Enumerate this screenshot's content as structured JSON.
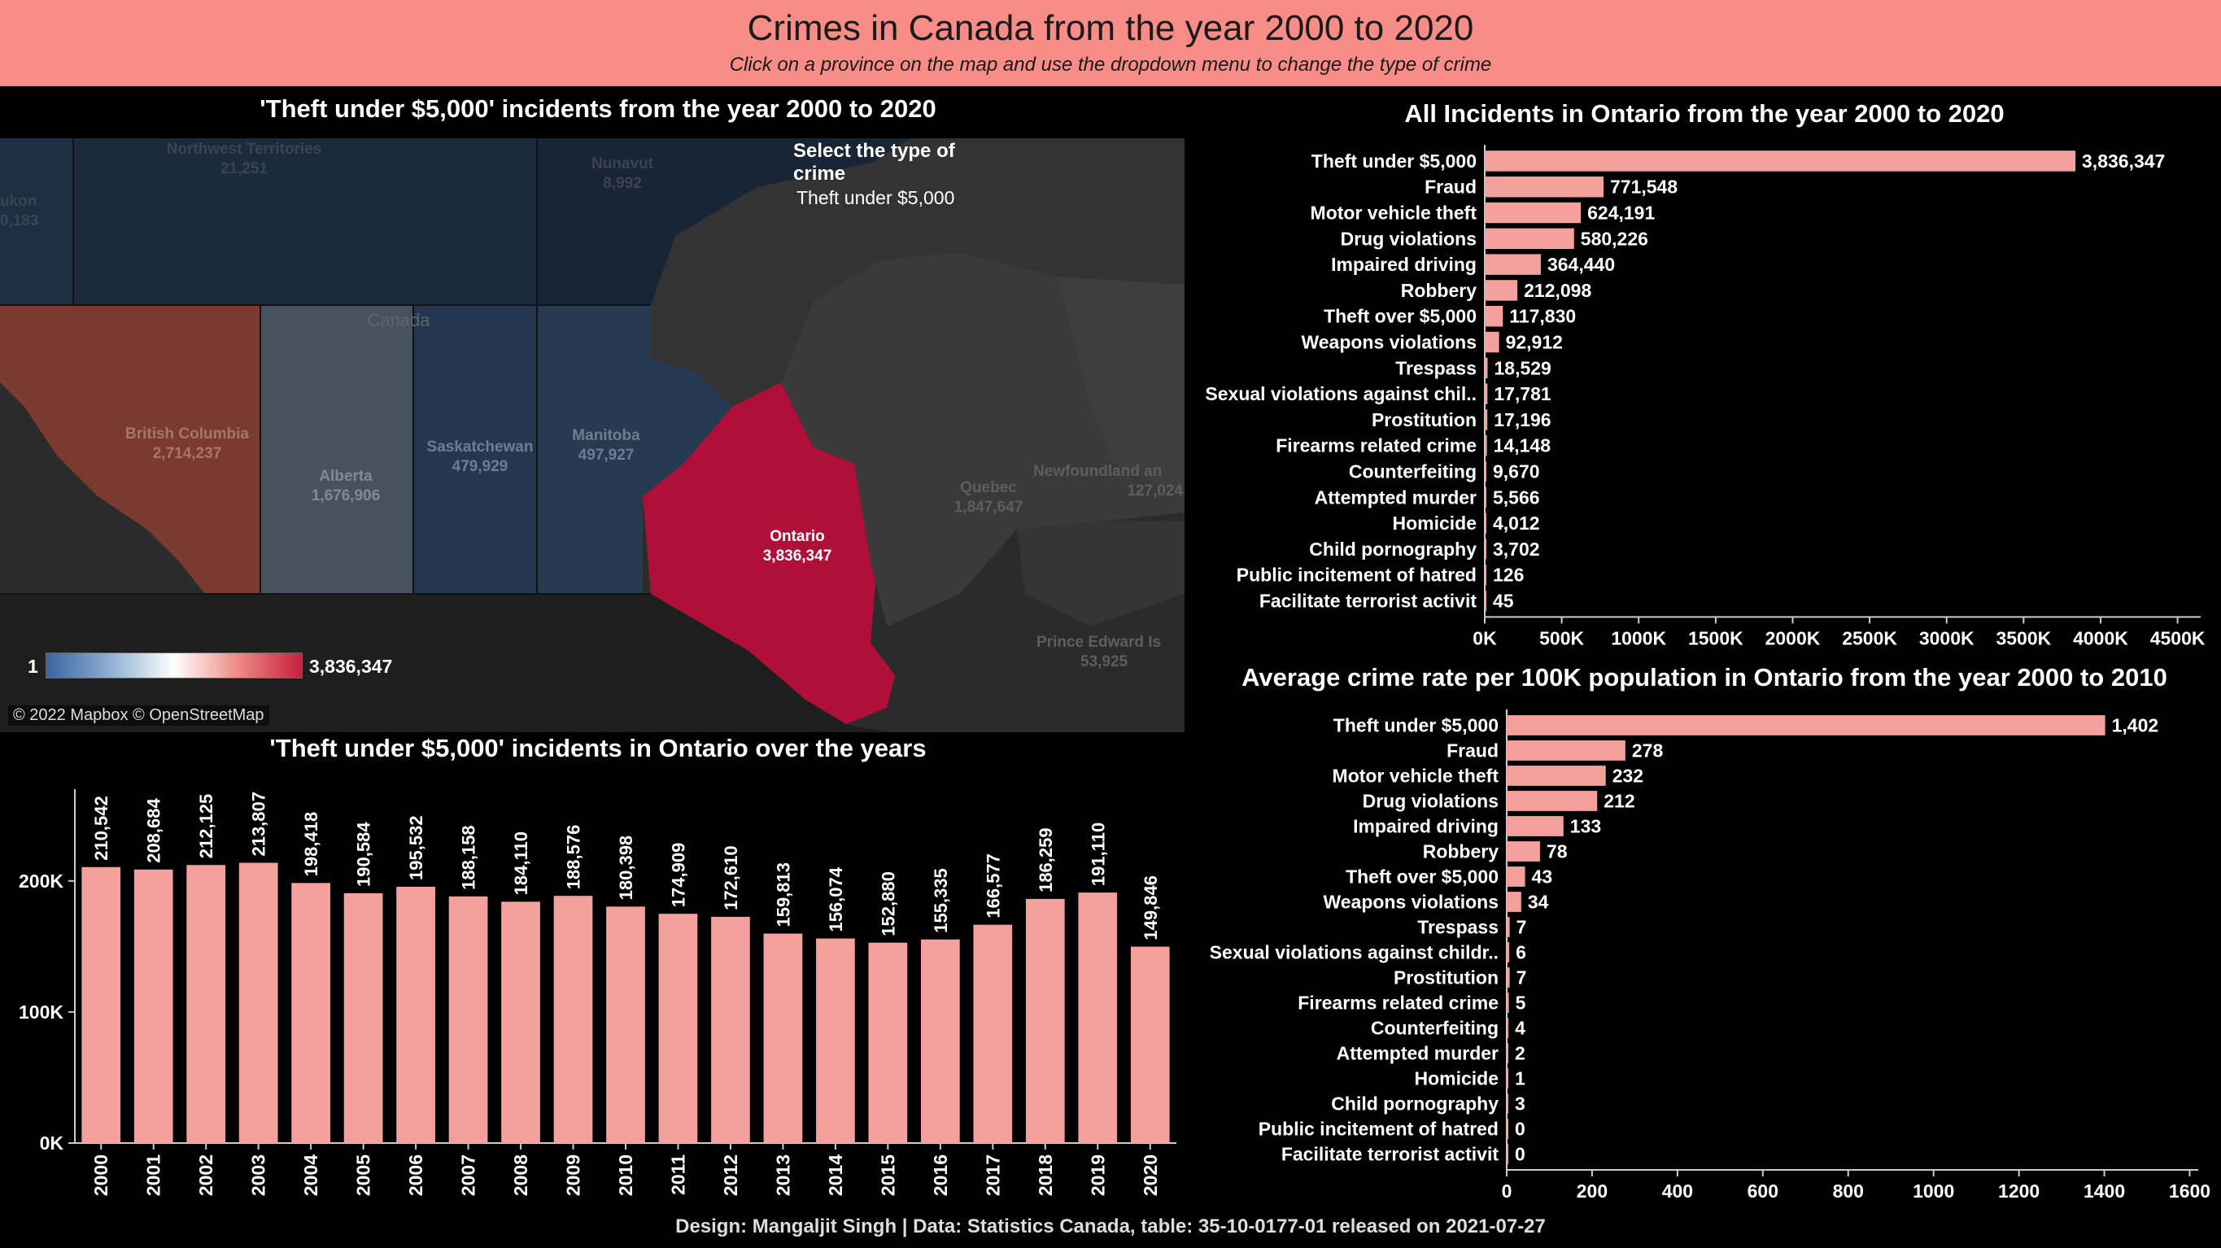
{
  "header": {
    "title": "Crimes in Canada from the year 2000 to 2020",
    "subtitle": "Click on a province on the map and use the dropdown menu to change the type of crime"
  },
  "map": {
    "title": "'Theft under $5,000' incidents from the year 2000 to 2020",
    "country_label": "Canada",
    "select": {
      "title": "Select the type of crime",
      "value": "Theft under $5,000"
    },
    "legend": {
      "min": "1",
      "max": "3,836,347"
    },
    "attribution": "© 2022 Mapbox © OpenStreetMap",
    "regions": [
      {
        "name": "Northwest Territories",
        "value": "21,251"
      },
      {
        "name": "Nunavut",
        "value": "8,992"
      },
      {
        "name": "ukon",
        "value": "0,183"
      },
      {
        "name": "British Columbia",
        "value": "2,714,237"
      },
      {
        "name": "Alberta",
        "value": "1,676,906"
      },
      {
        "name": "Saskatchewan",
        "value": "479,929"
      },
      {
        "name": "Manitoba",
        "value": "497,927"
      },
      {
        "name": "Ontario",
        "value": "3,836,347"
      },
      {
        "name": "Quebec",
        "value": "1,847,647"
      },
      {
        "name": "Newfoundland an",
        "value": "127,024"
      },
      {
        "name": "Prince Edward Is",
        "value": "53,925"
      }
    ],
    "colors": {
      "selected": "#b01038",
      "bc": "#7a3a30",
      "alberta": "#4a5864",
      "prairie": "#263a52",
      "north": "#1a2a3c",
      "land": "#3c3c3c",
      "water": "#2b2b2b"
    }
  },
  "footer": "Design: Mangaljit Singh | Data: Statistics Canada, table: 35-10-0177-01 released on 2021-07-27",
  "chart_data": [
    {
      "id": "all-incidents",
      "type": "bar",
      "orientation": "horizontal",
      "title": "All Incidents in Ontario from the year 2000 to 2020",
      "categories": [
        "Theft under $5,000",
        "Fraud",
        "Motor vehicle theft",
        "Drug violations",
        "Impaired driving",
        "Robbery",
        "Theft over $5,000",
        "Weapons violations",
        "Trespass",
        "Sexual violations against chil..",
        "Prostitution",
        "Firearms related crime",
        "Counterfeiting",
        "Attempted murder",
        "Homicide",
        "Child pornography",
        "Public incitement of hatred",
        "Facilitate terrorist activit"
      ],
      "values": [
        3836347,
        771548,
        624191,
        580226,
        364440,
        212098,
        117830,
        92912,
        18529,
        17781,
        17196,
        14148,
        9670,
        5566,
        4012,
        3702,
        126,
        45
      ],
      "value_labels": [
        "3,836,347",
        "771,548",
        "624,191",
        "580,226",
        "364,440",
        "212,098",
        "117,830",
        "92,912",
        "18,529",
        "17,781",
        "17,196",
        "14,148",
        "9,670",
        "5,566",
        "4,012",
        "3,702",
        "126",
        "45"
      ],
      "xlim": [
        0,
        4650000
      ],
      "ticks": [
        0,
        500000,
        1000000,
        1500000,
        2000000,
        2500000,
        3000000,
        3500000,
        4000000,
        4500000
      ],
      "tick_labels": [
        "0K",
        "500K",
        "1000K",
        "1500K",
        "2000K",
        "2500K",
        "3000K",
        "3500K",
        "4000K",
        "4500K"
      ],
      "color": "#f4a09c"
    },
    {
      "id": "avg-rate",
      "type": "bar",
      "orientation": "horizontal",
      "title": "Average crime rate per 100K population in Ontario from the year 2000 to 2010",
      "categories": [
        "Theft under $5,000",
        "Fraud",
        "Motor vehicle theft",
        "Drug violations",
        "Impaired driving",
        "Robbery",
        "Theft over $5,000",
        "Weapons violations",
        "Trespass",
        "Sexual violations against childr..",
        "Prostitution",
        "Firearms related crime",
        "Counterfeiting",
        "Attempted murder",
        "Homicide",
        "Child pornography",
        "Public incitement of hatred",
        "Facilitate terrorist activit"
      ],
      "values": [
        1402,
        278,
        232,
        212,
        133,
        78,
        43,
        34,
        7,
        6,
        7,
        5,
        4,
        2,
        1,
        3,
        0,
        0
      ],
      "value_labels": [
        "1,402",
        "278",
        "232",
        "212",
        "133",
        "78",
        "43",
        "34",
        "7",
        "6",
        "7",
        "5",
        "4",
        "2",
        "1",
        "3",
        "0",
        "0"
      ],
      "xlim": [
        0,
        1620
      ],
      "ticks": [
        0,
        200,
        400,
        600,
        800,
        1000,
        1200,
        1400,
        1600
      ],
      "tick_labels": [
        "0",
        "200",
        "400",
        "600",
        "800",
        "1000",
        "1200",
        "1400",
        "1600"
      ],
      "color": "#f4a09c"
    },
    {
      "id": "over-years",
      "type": "bar",
      "orientation": "vertical",
      "title": "'Theft under $5,000' incidents in Ontario over the years",
      "categories": [
        "2000",
        "2001",
        "2002",
        "2003",
        "2004",
        "2005",
        "2006",
        "2007",
        "2008",
        "2009",
        "2010",
        "2011",
        "2012",
        "2013",
        "2014",
        "2015",
        "2016",
        "2017",
        "2018",
        "2019",
        "2020"
      ],
      "values": [
        210542,
        208684,
        212125,
        213807,
        198418,
        190584,
        195532,
        188158,
        184110,
        188576,
        180398,
        174909,
        172610,
        159813,
        156074,
        152880,
        155335,
        166577,
        186259,
        191110,
        149846
      ],
      "value_labels": [
        "210,542",
        "208,684",
        "212,125",
        "213,807",
        "198,418",
        "190,584",
        "195,532",
        "188,158",
        "184,110",
        "188,576",
        "180,398",
        "174,909",
        "172,610",
        "159,813",
        "156,074",
        "152,880",
        "155,335",
        "166,577",
        "186,259",
        "191,110",
        "149,846"
      ],
      "ylim": [
        0,
        270000
      ],
      "ticks": [
        0,
        100000,
        200000
      ],
      "tick_labels": [
        "0K",
        "100K",
        "200K"
      ],
      "color": "#f4a09c"
    }
  ]
}
